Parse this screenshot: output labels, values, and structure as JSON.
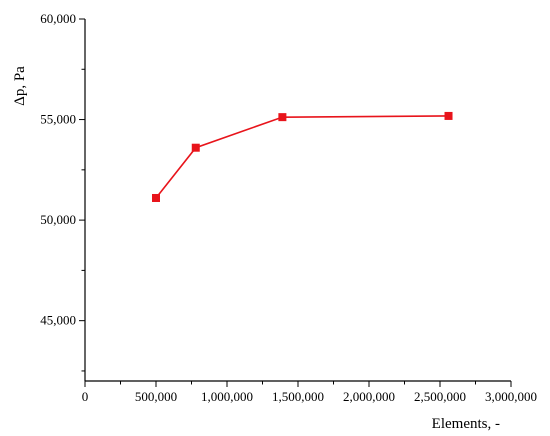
{
  "chart_data": {
    "type": "line",
    "title": "",
    "xlabel": "Elements, -",
    "ylabel": "Δp, Pa",
    "xlim": [
      0,
      3000000
    ],
    "ylim": [
      42000,
      60000
    ],
    "x_ticks": [
      0,
      500000,
      1000000,
      1500000,
      2000000,
      2500000,
      3000000
    ],
    "x_tick_labels": [
      "0",
      "500,000",
      "1,000,000",
      "1,500,000",
      "2,000,000",
      "2,500,000",
      "3,000,000"
    ],
    "y_ticks": [
      45000,
      50000,
      55000,
      60000
    ],
    "y_tick_labels": [
      "45,000",
      "50,000",
      "55,000",
      "60,000"
    ],
    "grid": false,
    "series": [
      {
        "color": "#e8141b",
        "x": [
          500000,
          780000,
          1390000,
          2560000
        ],
        "y": [
          51100,
          53600,
          55120,
          55180
        ]
      }
    ]
  }
}
